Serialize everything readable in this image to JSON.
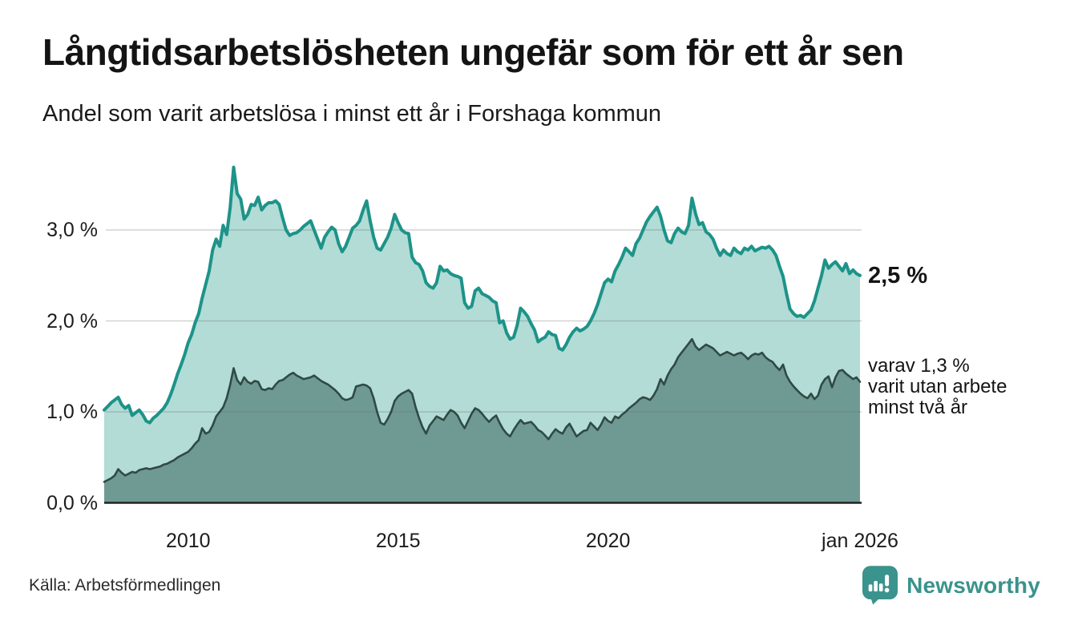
{
  "header": {
    "title": "Långtidsarbetslösheten ungefär som för ett år sen",
    "subtitle": "Andel som varit arbetslösa i minst ett år i Forshaga kommun"
  },
  "annotations": {
    "latest_total": "2,5 %",
    "latest_two_year": "varav 1,3 %\nvarit utan arbete\nminst två år"
  },
  "footer": {
    "source": "Källa: Arbetsförmedlingen",
    "logo_text": "Newsworthy"
  },
  "colors": {
    "total_line": "#1d9389",
    "total_fill": "#b2dcd5",
    "two_year_line": "#2f4a45",
    "two_year_fill": "#6f9a93",
    "gridline": "rgba(110,110,110,0.30)",
    "baseline": "#222222",
    "logo_teal": "#3a938c",
    "text": "#141414"
  },
  "chart_data": {
    "type": "area",
    "title": "Långtidsarbetslösheten ungefär som för ett år sen",
    "subtitle": "Andel som varit arbetslösa i minst ett år i Forshaga kommun",
    "x_domain": [
      2008,
      2026
    ],
    "y_domain": [
      0,
      3.8
    ],
    "grid": true,
    "y_ticks": [
      {
        "value": 0,
        "label": "0,0 %"
      },
      {
        "value": 1,
        "label": "1,0 %"
      },
      {
        "value": 2,
        "label": "2,0 %"
      },
      {
        "value": 3,
        "label": "3,0 %"
      }
    ],
    "x_ticks": [
      {
        "value": 2010,
        "label": "2010"
      },
      {
        "value": 2015,
        "label": "2015"
      },
      {
        "value": 2020,
        "label": "2020"
      },
      {
        "value": 2026,
        "label": "jan 2026"
      }
    ],
    "unit": "%",
    "series": [
      {
        "name": "Arbetslösa minst ett år",
        "latest_label": "2,5 %",
        "line_color": "#1d9389",
        "fill_color": "#b2dcd5",
        "line_width": 4,
        "start_year": 2008.0,
        "step_months": 1,
        "values": [
          1.02,
          1.06,
          1.1,
          1.13,
          1.16,
          1.08,
          1.04,
          1.07,
          0.96,
          0.99,
          1.02,
          0.97,
          0.9,
          0.88,
          0.93,
          0.96,
          1.0,
          1.04,
          1.1,
          1.19,
          1.3,
          1.42,
          1.52,
          1.63,
          1.76,
          1.85,
          1.98,
          2.08,
          2.25,
          2.4,
          2.55,
          2.78,
          2.9,
          2.82,
          3.05,
          2.95,
          3.25,
          3.69,
          3.4,
          3.34,
          3.12,
          3.17,
          3.28,
          3.27,
          3.36,
          3.22,
          3.27,
          3.3,
          3.3,
          3.32,
          3.28,
          3.13,
          3.0,
          2.94,
          2.96,
          2.97,
          3.0,
          3.04,
          3.07,
          3.1,
          3.0,
          2.9,
          2.8,
          2.92,
          2.98,
          3.03,
          3.0,
          2.85,
          2.76,
          2.82,
          2.92,
          3.02,
          3.05,
          3.1,
          3.22,
          3.32,
          3.1,
          2.92,
          2.8,
          2.78,
          2.85,
          2.92,
          3.02,
          3.17,
          3.08,
          3.0,
          2.97,
          2.96,
          2.7,
          2.64,
          2.62,
          2.55,
          2.42,
          2.38,
          2.36,
          2.42,
          2.6,
          2.55,
          2.56,
          2.52,
          2.5,
          2.49,
          2.47,
          2.2,
          2.14,
          2.16,
          2.33,
          2.36,
          2.3,
          2.28,
          2.26,
          2.22,
          2.2,
          1.98,
          2.0,
          1.87,
          1.8,
          1.82,
          1.95,
          2.14,
          2.1,
          2.05,
          1.97,
          1.9,
          1.77,
          1.8,
          1.82,
          1.88,
          1.85,
          1.84,
          1.7,
          1.68,
          1.74,
          1.82,
          1.88,
          1.92,
          1.89,
          1.91,
          1.94,
          2.0,
          2.08,
          2.18,
          2.3,
          2.42,
          2.46,
          2.43,
          2.55,
          2.62,
          2.7,
          2.8,
          2.76,
          2.72,
          2.85,
          2.91,
          3.0,
          3.09,
          3.15,
          3.2,
          3.25,
          3.15,
          3.0,
          2.88,
          2.86,
          2.96,
          3.02,
          2.98,
          2.96,
          3.05,
          3.35,
          3.18,
          3.06,
          3.08,
          2.98,
          2.95,
          2.9,
          2.8,
          2.72,
          2.78,
          2.74,
          2.72,
          2.8,
          2.76,
          2.74,
          2.8,
          2.78,
          2.82,
          2.77,
          2.79,
          2.81,
          2.8,
          2.82,
          2.78,
          2.72,
          2.6,
          2.49,
          2.3,
          2.13,
          2.08,
          2.05,
          2.06,
          2.04,
          2.08,
          2.12,
          2.22,
          2.36,
          2.5,
          2.67,
          2.58,
          2.62,
          2.65,
          2.6,
          2.55,
          2.63,
          2.52,
          2.56,
          2.52,
          2.5
        ]
      },
      {
        "name": "varav utan arbete minst två år",
        "latest_label": "varav 1,3 %",
        "line_color": "#2f4a45",
        "fill_color": "#6f9a93",
        "line_width": 2.6,
        "start_year": 2008.0,
        "step_months": 1,
        "values": [
          0.23,
          0.25,
          0.27,
          0.3,
          0.37,
          0.33,
          0.3,
          0.32,
          0.34,
          0.33,
          0.36,
          0.37,
          0.38,
          0.37,
          0.38,
          0.39,
          0.4,
          0.42,
          0.43,
          0.45,
          0.47,
          0.5,
          0.52,
          0.54,
          0.56,
          0.6,
          0.65,
          0.69,
          0.82,
          0.76,
          0.78,
          0.85,
          0.95,
          1.0,
          1.05,
          1.15,
          1.3,
          1.48,
          1.35,
          1.3,
          1.38,
          1.33,
          1.31,
          1.34,
          1.33,
          1.25,
          1.24,
          1.26,
          1.25,
          1.3,
          1.34,
          1.35,
          1.38,
          1.41,
          1.43,
          1.4,
          1.38,
          1.36,
          1.37,
          1.38,
          1.4,
          1.37,
          1.34,
          1.32,
          1.3,
          1.27,
          1.24,
          1.2,
          1.15,
          1.13,
          1.14,
          1.16,
          1.28,
          1.29,
          1.3,
          1.29,
          1.26,
          1.15,
          1.0,
          0.88,
          0.86,
          0.92,
          1.0,
          1.12,
          1.17,
          1.2,
          1.22,
          1.24,
          1.2,
          1.05,
          0.93,
          0.83,
          0.76,
          0.85,
          0.9,
          0.95,
          0.93,
          0.91,
          0.97,
          1.02,
          1.0,
          0.96,
          0.88,
          0.82,
          0.9,
          0.98,
          1.04,
          1.02,
          0.98,
          0.93,
          0.89,
          0.93,
          0.96,
          0.88,
          0.81,
          0.76,
          0.73,
          0.8,
          0.86,
          0.91,
          0.87,
          0.88,
          0.89,
          0.85,
          0.8,
          0.78,
          0.74,
          0.7,
          0.76,
          0.81,
          0.78,
          0.76,
          0.83,
          0.87,
          0.8,
          0.73,
          0.76,
          0.79,
          0.8,
          0.88,
          0.84,
          0.8,
          0.86,
          0.94,
          0.9,
          0.88,
          0.95,
          0.93,
          0.97,
          1.0,
          1.04,
          1.07,
          1.1,
          1.14,
          1.16,
          1.15,
          1.13,
          1.18,
          1.25,
          1.36,
          1.3,
          1.4,
          1.47,
          1.52,
          1.6,
          1.65,
          1.7,
          1.75,
          1.8,
          1.72,
          1.68,
          1.71,
          1.74,
          1.72,
          1.7,
          1.66,
          1.62,
          1.64,
          1.66,
          1.64,
          1.62,
          1.64,
          1.65,
          1.62,
          1.58,
          1.62,
          1.64,
          1.63,
          1.65,
          1.6,
          1.57,
          1.55,
          1.5,
          1.46,
          1.52,
          1.4,
          1.33,
          1.28,
          1.24,
          1.2,
          1.17,
          1.15,
          1.2,
          1.14,
          1.18,
          1.3,
          1.36,
          1.39,
          1.27,
          1.38,
          1.45,
          1.46,
          1.42,
          1.39,
          1.36,
          1.38,
          1.33
        ]
      }
    ]
  }
}
